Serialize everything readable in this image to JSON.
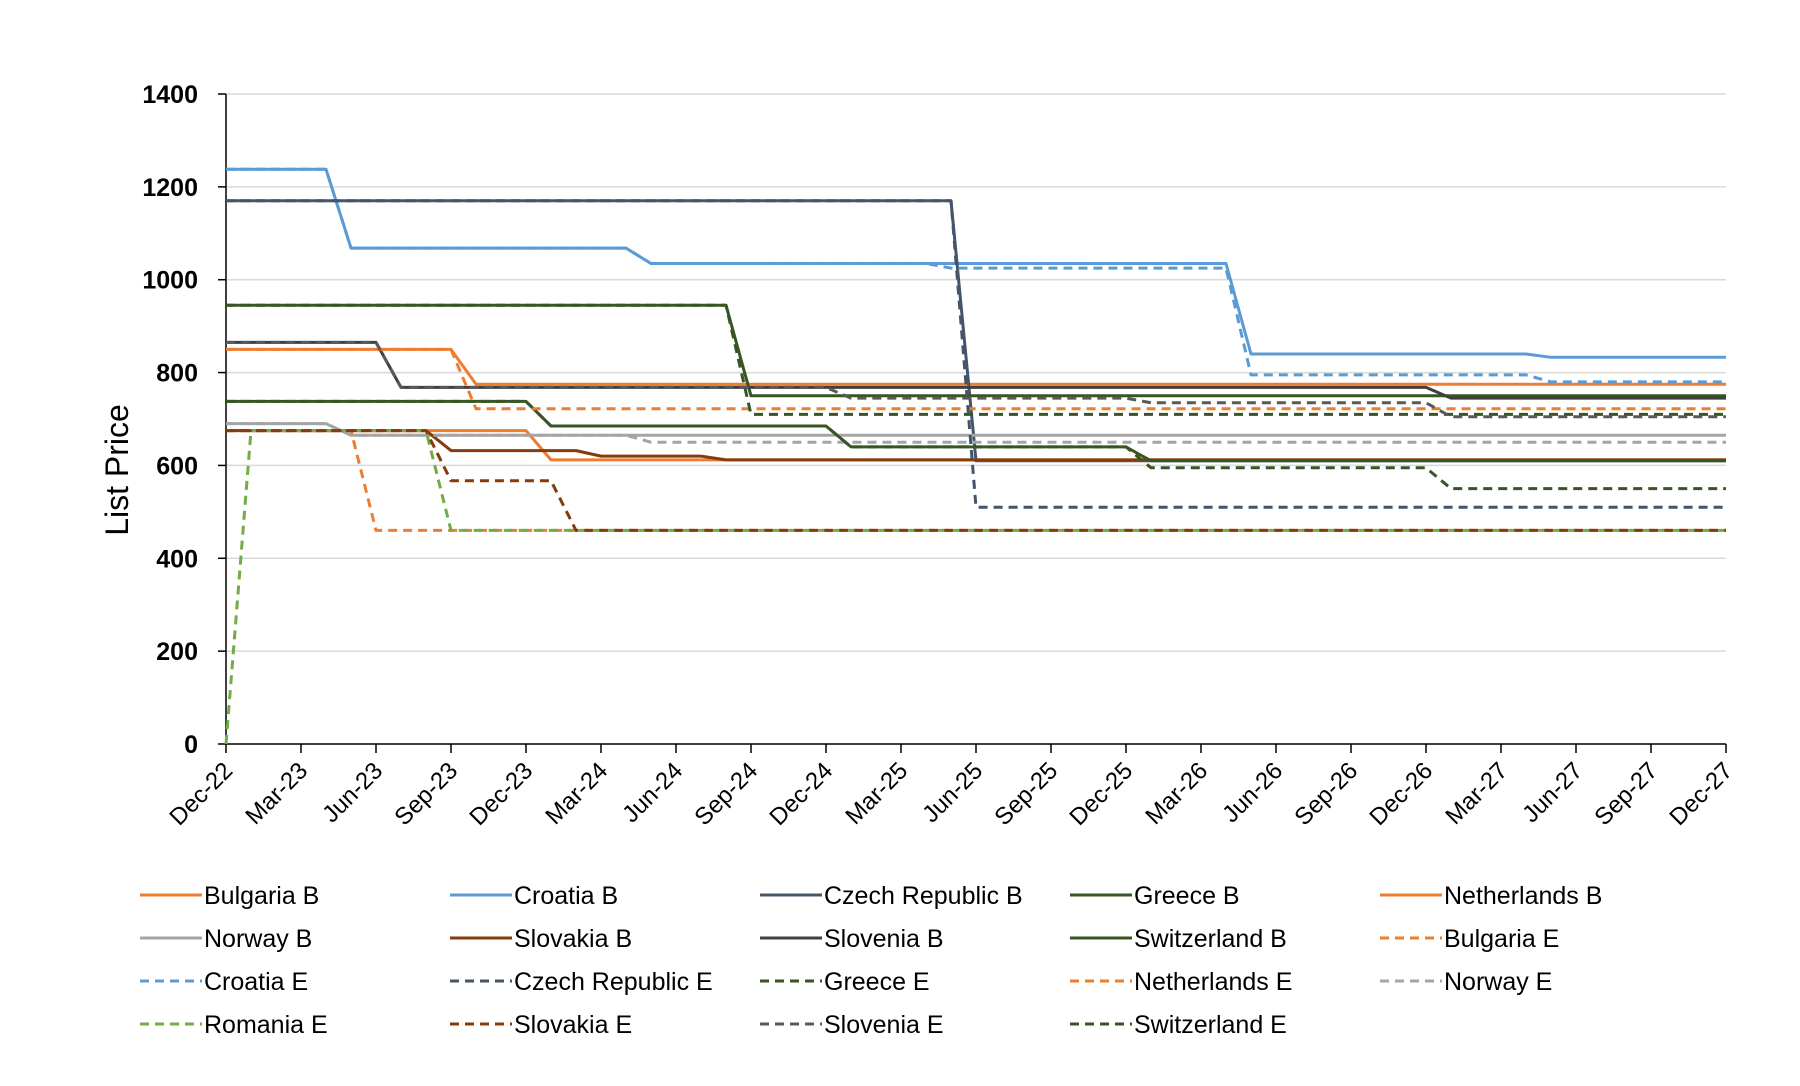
{
  "chart_data": {
    "type": "line",
    "title": "",
    "xlabel": "",
    "ylabel": "List Price",
    "ylim": [
      0,
      1400
    ],
    "yticks": [
      0,
      200,
      400,
      600,
      800,
      1000,
      1200,
      1400
    ],
    "xticks": [
      "Dec-22",
      "Mar-23",
      "Jun-23",
      "Sep-23",
      "Dec-23",
      "Mar-24",
      "Jun-24",
      "Sep-24",
      "Dec-24",
      "Mar-25",
      "Jun-25",
      "Sep-25",
      "Dec-25",
      "Mar-26",
      "Jun-26",
      "Sep-26",
      "Dec-26",
      "Mar-27",
      "Jun-27",
      "Sep-27",
      "Dec-27"
    ],
    "xlim": [
      0,
      60
    ],
    "grid": "horizontal",
    "legend_position": "bottom",
    "series": [
      {
        "name": "Bulgaria B",
        "color": "#ED7D31",
        "dash": "solid",
        "points": [
          [
            0,
            850
          ],
          [
            9,
            850
          ],
          [
            10,
            775
          ],
          [
            60,
            775
          ]
        ]
      },
      {
        "name": "Croatia B",
        "color": "#5B9BD5",
        "dash": "solid",
        "points": [
          [
            0,
            1238
          ],
          [
            4,
            1238
          ],
          [
            5,
            1068
          ],
          [
            16,
            1068
          ],
          [
            17,
            1035
          ],
          [
            28,
            1035
          ],
          [
            29,
            1035
          ],
          [
            40,
            1035
          ],
          [
            41,
            840
          ],
          [
            52,
            840
          ],
          [
            53,
            833
          ],
          [
            60,
            833
          ]
        ]
      },
      {
        "name": "Czech Republic B",
        "color": "#44546A",
        "dash": "solid",
        "points": [
          [
            0,
            1170
          ],
          [
            29,
            1170
          ],
          [
            30,
            610
          ],
          [
            60,
            610
          ]
        ]
      },
      {
        "name": "Greece B",
        "color": "#375623",
        "dash": "solid",
        "points": [
          [
            0,
            945
          ],
          [
            20,
            945
          ],
          [
            21,
            750
          ],
          [
            60,
            750
          ]
        ]
      },
      {
        "name": "Netherlands B",
        "color": "#ED7D31",
        "dash": "solid",
        "points": [
          [
            0,
            675
          ],
          [
            12,
            675
          ],
          [
            13,
            612
          ],
          [
            60,
            612
          ]
        ]
      },
      {
        "name": "Norway B",
        "color": "#A5A5A5",
        "dash": "solid",
        "points": [
          [
            0,
            690
          ],
          [
            4,
            690
          ],
          [
            5,
            665
          ],
          [
            60,
            665
          ]
        ]
      },
      {
        "name": "Slovakia B",
        "color": "#843C0C",
        "dash": "solid",
        "points": [
          [
            0,
            675
          ],
          [
            8,
            675
          ],
          [
            9,
            632
          ],
          [
            14,
            632
          ],
          [
            15,
            620
          ],
          [
            19,
            620
          ],
          [
            20,
            612
          ],
          [
            60,
            612
          ]
        ]
      },
      {
        "name": "Slovenia B",
        "color": "#404040",
        "dash": "solid",
        "points": [
          [
            0,
            865
          ],
          [
            6,
            865
          ],
          [
            7,
            768
          ],
          [
            24,
            768
          ],
          [
            25,
            768
          ],
          [
            48,
            768
          ],
          [
            49,
            745
          ],
          [
            60,
            745
          ]
        ]
      },
      {
        "name": "Switzerland B",
        "color": "#375623",
        "dash": "solid",
        "points": [
          [
            0,
            738
          ],
          [
            12,
            738
          ],
          [
            13,
            685
          ],
          [
            24,
            685
          ],
          [
            25,
            640
          ],
          [
            36,
            640
          ],
          [
            37,
            610
          ],
          [
            60,
            610
          ]
        ]
      },
      {
        "name": "Bulgaria E",
        "color": "#ED7D31",
        "dash": "dash",
        "points": [
          [
            0,
            850
          ],
          [
            9,
            850
          ],
          [
            10,
            722
          ],
          [
            60,
            722
          ]
        ]
      },
      {
        "name": "Croatia E",
        "color": "#5B9BD5",
        "dash": "dash",
        "points": [
          [
            0,
            1238
          ],
          [
            4,
            1238
          ],
          [
            5,
            1068
          ],
          [
            16,
            1068
          ],
          [
            17,
            1035
          ],
          [
            28,
            1035
          ],
          [
            29,
            1025
          ],
          [
            40,
            1025
          ],
          [
            41,
            795
          ],
          [
            52,
            795
          ],
          [
            53,
            780
          ],
          [
            60,
            780
          ]
        ]
      },
      {
        "name": "Czech Republic E",
        "color": "#44546A",
        "dash": "dash",
        "points": [
          [
            0,
            1170
          ],
          [
            29,
            1170
          ],
          [
            30,
            510
          ],
          [
            60,
            510
          ]
        ]
      },
      {
        "name": "Greece E",
        "color": "#375623",
        "dash": "dash",
        "points": [
          [
            0,
            945
          ],
          [
            20,
            945
          ],
          [
            21,
            710
          ],
          [
            60,
            710
          ]
        ]
      },
      {
        "name": "Netherlands E",
        "color": "#ED7D31",
        "dash": "dash",
        "points": [
          [
            0,
            675
          ],
          [
            5,
            675
          ],
          [
            6,
            460
          ],
          [
            60,
            460
          ]
        ]
      },
      {
        "name": "Norway E",
        "color": "#A5A5A5",
        "dash": "dash",
        "points": [
          [
            0,
            690
          ],
          [
            4,
            690
          ],
          [
            5,
            665
          ],
          [
            16,
            665
          ],
          [
            17,
            650
          ],
          [
            60,
            650
          ]
        ]
      },
      {
        "name": "Romania E",
        "color": "#70AD47",
        "dash": "dash",
        "points": [
          [
            0,
            0
          ],
          [
            1,
            675
          ],
          [
            8,
            675
          ],
          [
            9,
            460
          ],
          [
            60,
            460
          ]
        ]
      },
      {
        "name": "Slovakia E",
        "color": "#843C0C",
        "dash": "dash",
        "points": [
          [
            0,
            675
          ],
          [
            8,
            675
          ],
          [
            9,
            567
          ],
          [
            13,
            567
          ],
          [
            14,
            460
          ],
          [
            60,
            460
          ]
        ]
      },
      {
        "name": "Slovenia E",
        "color": "#595959",
        "dash": "dash",
        "points": [
          [
            0,
            865
          ],
          [
            6,
            865
          ],
          [
            7,
            768
          ],
          [
            24,
            768
          ],
          [
            25,
            745
          ],
          [
            36,
            745
          ],
          [
            37,
            735
          ],
          [
            48,
            735
          ],
          [
            49,
            705
          ],
          [
            60,
            705
          ]
        ]
      },
      {
        "name": "Switzerland E",
        "color": "#375623",
        "dash": "dash",
        "points": [
          [
            0,
            738
          ],
          [
            12,
            738
          ],
          [
            13,
            685
          ],
          [
            24,
            685
          ],
          [
            25,
            640
          ],
          [
            36,
            640
          ],
          [
            37,
            595
          ],
          [
            48,
            595
          ],
          [
            49,
            550
          ],
          [
            60,
            550
          ]
        ]
      }
    ]
  }
}
